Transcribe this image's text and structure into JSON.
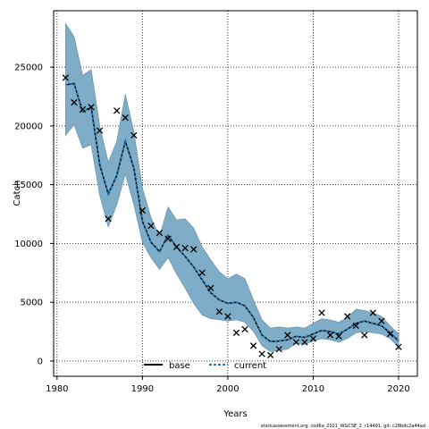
{
  "chart_data": {
    "type": "line",
    "title": "",
    "xlabel": "Years",
    "ylabel": "Catch",
    "xlim": [
      1979.6,
      2022.2
    ],
    "ylim": [
      -1300,
      29800
    ],
    "x_ticks": [
      1980,
      1990,
      2000,
      2010,
      2020
    ],
    "y_ticks": [
      0,
      5000,
      10000,
      15000,
      20000,
      25000
    ],
    "grid": "dotted",
    "legend_placement": "bottom-center",
    "legend": [
      {
        "name": "base",
        "style": "solid",
        "color": "#000000"
      },
      {
        "name": "current",
        "style": "dashed",
        "color": "#1f77b4"
      }
    ],
    "band_color": "#7fadc7",
    "x": [
      1981,
      1982,
      1983,
      1984,
      1985,
      1986,
      1987,
      1988,
      1989,
      1990,
      1991,
      1992,
      1993,
      1994,
      1995,
      1996,
      1997,
      1998,
      1999,
      2000,
      2001,
      2002,
      2003,
      2004,
      2005,
      2006,
      2007,
      2008,
      2009,
      2010,
      2011,
      2012,
      2013,
      2014,
      2015,
      2016,
      2017,
      2018,
      2019,
      2020
    ],
    "series": [
      {
        "name": "current",
        "values": [
          23500,
          23600,
          21200,
          21600,
          16700,
          14200,
          15800,
          18700,
          16400,
          11900,
          10100,
          9300,
          10700,
          9700,
          8900,
          8000,
          6900,
          5800,
          5200,
          4900,
          5000,
          4700,
          3700,
          2200,
          1650,
          1700,
          1800,
          2100,
          2000,
          2300,
          2600,
          2500,
          2300,
          2700,
          3200,
          3400,
          3200,
          3000,
          2400,
          1700
        ]
      },
      {
        "name": "upper",
        "values": [
          28700,
          27600,
          24300,
          24800,
          20000,
          16900,
          18700,
          22700,
          19500,
          14700,
          12200,
          10600,
          13100,
          12000,
          12100,
          11300,
          9700,
          8600,
          7600,
          7000,
          7400,
          7000,
          5200,
          3500,
          2800,
          2900,
          2800,
          2900,
          2800,
          3200,
          3600,
          3500,
          3300,
          3700,
          4400,
          4300,
          4100,
          3800,
          3000,
          2300
        ]
      },
      {
        "name": "lower",
        "values": [
          19200,
          20100,
          18100,
          18400,
          14100,
          11400,
          13300,
          15900,
          13300,
          10100,
          8800,
          7800,
          8800,
          7400,
          6200,
          4900,
          3900,
          3600,
          3500,
          3400,
          3500,
          3300,
          2500,
          1300,
          800,
          900,
          1000,
          1500,
          1400,
          1700,
          1900,
          1800,
          1600,
          1900,
          2400,
          2500,
          2400,
          2300,
          1900,
          1200
        ]
      },
      {
        "name": "observed",
        "values": [
          24100,
          22000,
          21400,
          21600,
          19600,
          12100,
          21300,
          20700,
          19200,
          12800,
          11500,
          10900,
          10400,
          9700,
          9600,
          9500,
          7500,
          6200,
          4200,
          3800,
          2400,
          2700,
          1300,
          600,
          500,
          1000,
          2200,
          1600,
          1600,
          1900,
          4100,
          2200,
          2100,
          3800,
          3000,
          2200,
          4100,
          3400,
          2300,
          1200
        ]
      }
    ]
  },
  "footer_note": "stockassessment.org, cod6a_2021_WGCSE_2, r14491, git: c28bdc2a44ad"
}
